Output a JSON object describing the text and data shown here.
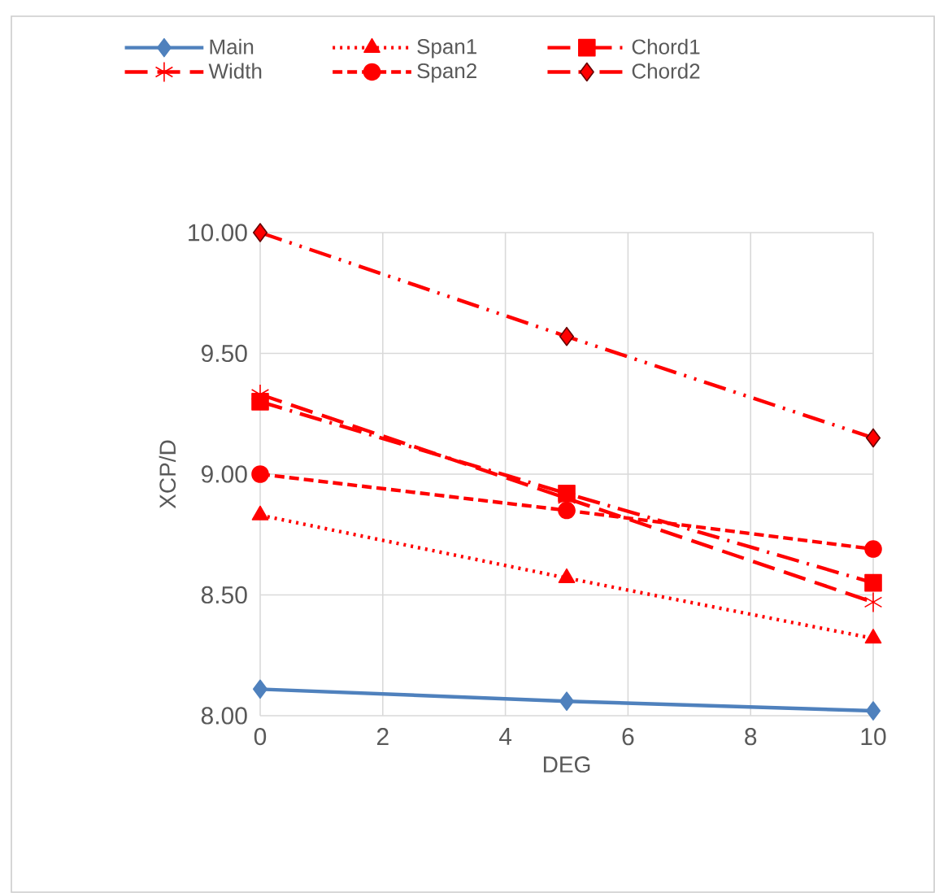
{
  "chart_data": {
    "type": "line",
    "xlabel": "DEG",
    "ylabel": "XCP/D",
    "x": [
      0,
      5,
      10
    ],
    "series": [
      {
        "name": "Main",
        "color": "#4f81bd",
        "values": [
          8.11,
          8.06,
          8.02
        ],
        "marker": "diamond",
        "line_style": "solid"
      },
      {
        "name": "Span1",
        "color": "#ff0000",
        "values": [
          8.83,
          8.57,
          8.32
        ],
        "marker": "triangle",
        "line_style": "dotted"
      },
      {
        "name": "Chord1",
        "color": "#ff0000",
        "values": [
          9.3,
          8.92,
          8.55
        ],
        "marker": "square",
        "line_style": "dashdot"
      },
      {
        "name": "Width",
        "color": "#ff0000",
        "values": [
          9.33,
          8.9,
          8.47
        ],
        "marker": "cross",
        "line_style": "longdash"
      },
      {
        "name": "Span2",
        "color": "#ff0000",
        "values": [
          9.0,
          8.85,
          8.69
        ],
        "marker": "circle",
        "line_style": "dashed"
      },
      {
        "name": "Chord2",
        "color": "#ff0000",
        "values": [
          10.0,
          9.57,
          9.15
        ],
        "marker": "diamond",
        "line_style": "dashdotdot"
      }
    ],
    "xlim": [
      0,
      10
    ],
    "xticks": [
      0,
      2,
      4,
      6,
      8,
      10
    ],
    "ylim": [
      8,
      10
    ],
    "yticks": [
      {
        "value": 8,
        "label": "8.00"
      },
      {
        "value": 8.5,
        "label": "8.50"
      },
      {
        "value": 9,
        "label": "9.00"
      },
      {
        "value": 9.5,
        "label": "9.50"
      },
      {
        "value": 10,
        "label": "10.00"
      }
    ],
    "grid": true,
    "legend": "top"
  }
}
